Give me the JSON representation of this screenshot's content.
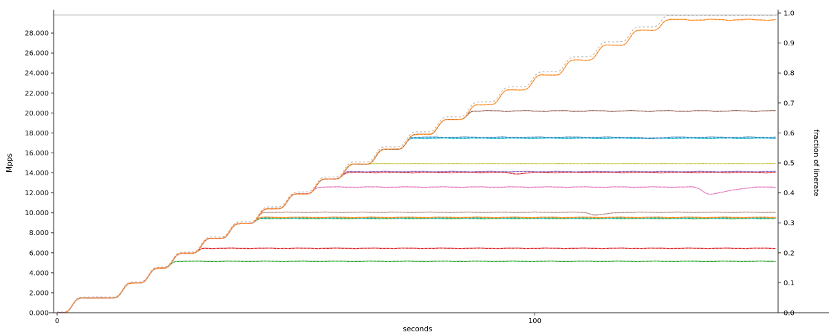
{
  "figure": {
    "xlabel": "seconds",
    "ylabel_left": "Mpps",
    "ylabel_right": "fraction of linerate"
  },
  "chart_data": {
    "type": "line",
    "title": "",
    "xlabel": "seconds",
    "ylabel": "Mpps",
    "ylabel_right": "fraction of linerate",
    "xlim": [
      -0.72,
      150.9
    ],
    "ylim_left": [
      0,
      30
    ],
    "ylim_right": [
      0,
      1.0
    ],
    "grid": false,
    "legend": "none",
    "x_ticks": [
      {
        "v": 0,
        "label": "0"
      },
      {
        "v": 100,
        "label": "100"
      }
    ],
    "y_ticks_left": [
      {
        "v": 0,
        "label": "0.000"
      },
      {
        "v": 2,
        "label": "2.000"
      },
      {
        "v": 4,
        "label": "4.000"
      },
      {
        "v": 6,
        "label": "6.000"
      },
      {
        "v": 8,
        "label": "8.000"
      },
      {
        "v": 10,
        "label": "10.000"
      },
      {
        "v": 12,
        "label": "12.000"
      },
      {
        "v": 14,
        "label": "14.000"
      },
      {
        "v": 16,
        "label": "16.000"
      },
      {
        "v": 18,
        "label": "18.000"
      },
      {
        "v": 20,
        "label": "20.000"
      },
      {
        "v": 22,
        "label": "22.000"
      },
      {
        "v": 24,
        "label": "24.000"
      },
      {
        "v": 26,
        "label": "26.000"
      },
      {
        "v": 28,
        "label": "28.000"
      }
    ],
    "y_ticks_right": [
      {
        "v": 0.0,
        "label": "0.0"
      },
      {
        "v": 0.1,
        "label": "0.1"
      },
      {
        "v": 0.2,
        "label": "0.2"
      },
      {
        "v": 0.3,
        "label": "0.3"
      },
      {
        "v": 0.4,
        "label": "0.4"
      },
      {
        "v": 0.5,
        "label": "0.5"
      },
      {
        "v": 0.6,
        "label": "0.6"
      },
      {
        "v": 0.7,
        "label": "0.7"
      },
      {
        "v": 0.8,
        "label": "0.8"
      },
      {
        "v": 0.9,
        "label": "0.9"
      },
      {
        "v": 1.0,
        "label": "1.0"
      }
    ],
    "linerate_mpps": 29.76,
    "load_ramp": {
      "description": "offered load rises in steps of ~5% of linerate (1.488 Mpps) until full linerate",
      "step_mpps": 1.488,
      "n_steps": 20,
      "rise_end_times_s": [
        4.5,
        15,
        20.5,
        25.5,
        31.5,
        37.5,
        43.5,
        49.5,
        55.5,
        61.5,
        68,
        74.5,
        81,
        87.5,
        94,
        100.8,
        107.6,
        114.4,
        121.2,
        128
      ],
      "rise_duration_s": 2.6
    },
    "reference_lines": [
      {
        "name": "linerate-reference",
        "mpps": 29.8,
        "fraction": 1.0,
        "color": "#c6c6c6",
        "style": "solid"
      },
      {
        "name": "offered-load",
        "follows_ramp": true,
        "max_mpps": 29.76,
        "color": "#b3b3b3",
        "style": "dashed"
      }
    ],
    "series": [
      {
        "name": "cyan-17",
        "color": "#17becf",
        "accent_color": "#9edae5",
        "plateau_mpps": 17.47,
        "plateau_fraction": 0.582,
        "noise_amp": 0.04,
        "phase": 1,
        "dips": []
      },
      {
        "name": "blue-17",
        "color": "#1f77b4",
        "accent_color": "#aec7e8",
        "plateau_mpps": 17.57,
        "plateau_fraction": 0.586,
        "noise_amp": 0.05,
        "phase": 2,
        "dips": [
          {
            "t": 123.5,
            "depth": 0.13,
            "w_pre": 1.2,
            "w_post": 2.0
          }
        ]
      },
      {
        "name": "olive-14",
        "color": "#bcbd22",
        "accent_color": "#dbdb8d",
        "plateau_mpps": 14.93,
        "plateau_fraction": 0.498,
        "noise_amp": 0.04,
        "phase": 3,
        "dips": []
      },
      {
        "name": "green-5",
        "color": "#2ca02c",
        "accent_color": "#98df8a",
        "plateau_mpps": 5.15,
        "plateau_fraction": 0.172,
        "noise_amp": 0.035,
        "phase": 4,
        "dips": []
      },
      {
        "name": "green-9",
        "color": "#2ca02c",
        "accent_color": "#98df8a",
        "plateau_mpps": 9.42,
        "plateau_fraction": 0.314,
        "noise_amp": 0.04,
        "phase": 5,
        "dips": []
      },
      {
        "name": "teal-9",
        "color": "#17becf",
        "accent_color": "#9edae5",
        "plateau_mpps": 9.5,
        "plateau_fraction": 0.317,
        "noise_amp": 0.045,
        "phase": 6,
        "dips": []
      },
      {
        "name": "orange-9",
        "color": "#ff7f0e",
        "accent_color": "#ffbb78",
        "plateau_mpps": 9.55,
        "plateau_fraction": 0.318,
        "noise_amp": 0.045,
        "phase": 7,
        "dips": []
      },
      {
        "name": "rosybrown-10",
        "color": "#c49c94",
        "accent_color": "#a5776d",
        "plateau_mpps": 10.06,
        "plateau_fraction": 0.335,
        "noise_amp": 0.04,
        "phase": 8,
        "dips": [
          {
            "t": 112.4,
            "depth": 0.28,
            "w_pre": 0.8,
            "w_post": 2.5
          }
        ]
      },
      {
        "name": "brown-20",
        "color": "#8c564b",
        "accent_color": "#c49c94",
        "plateau_mpps": 20.2,
        "plateau_fraction": 0.673,
        "noise_amp": 0.08,
        "phase": 9,
        "dips": []
      },
      {
        "name": "red-6",
        "color": "#d62728",
        "accent_color": "#ff9896",
        "plateau_mpps": 6.45,
        "plateau_fraction": 0.215,
        "noise_amp": 0.04,
        "phase": 10,
        "dips": []
      },
      {
        "name": "red-14",
        "color": "#d62728",
        "accent_color": "#ff9896",
        "plateau_mpps": 14.03,
        "plateau_fraction": 0.468,
        "noise_amp": 0.05,
        "phase": 11,
        "dips": [
          {
            "t": 96,
            "depth": 0.12,
            "w_pre": 1.0,
            "w_post": 1.5
          }
        ]
      },
      {
        "name": "purple-14",
        "color": "#9467bd",
        "accent_color": "#c5b0d5",
        "plateau_mpps": 14.13,
        "plateau_fraction": 0.471,
        "noise_amp": 0.04,
        "phase": 12,
        "dips": []
      },
      {
        "name": "pink-12",
        "color": "#e377c2",
        "accent_color": "#f7b6d2",
        "plateau_mpps": 12.58,
        "plateau_fraction": 0.419,
        "noise_amp": 0.05,
        "phase": 13,
        "dips": [
          {
            "t": 136.2,
            "depth": 0.7,
            "w_pre": 1.0,
            "w_post": 4.0
          }
        ]
      },
      {
        "name": "orange-29",
        "color": "#ff7f0e",
        "accent_color": "#ffbb78",
        "plateau_mpps": 29.33,
        "plateau_fraction": 0.978,
        "noise_amp": 0.1,
        "phase": 14,
        "dips": []
      }
    ]
  }
}
